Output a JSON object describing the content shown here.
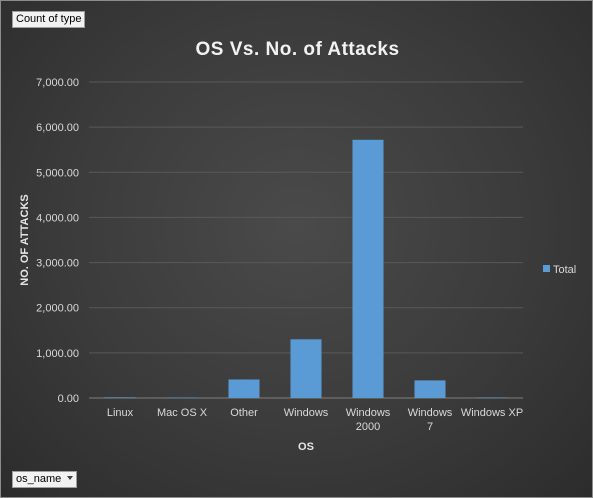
{
  "filter_buttons": {
    "value_field": "Count of type",
    "axis_field": "os_name"
  },
  "chart_data": {
    "type": "bar",
    "title": "OS Vs. No. of Attacks",
    "xlabel": "OS",
    "ylabel": "NO. OF ATTACKS",
    "categories": [
      "Linux",
      "Mac OS X",
      "Other",
      "Windows",
      "Windows 2000",
      "Windows 7",
      "Windows XP"
    ],
    "series": [
      {
        "name": "Total",
        "values": [
          15,
          10,
          410,
          1300,
          5720,
          390,
          12
        ]
      }
    ],
    "ylim": [
      0,
      7000
    ],
    "yticks": [
      0,
      1000,
      2000,
      3000,
      4000,
      5000,
      6000,
      7000
    ],
    "ytick_labels": [
      "0.00",
      "1,000.00",
      "2,000.00",
      "3,000.00",
      "4,000.00",
      "5,000.00",
      "6,000.00",
      "7,000.00"
    ],
    "grid": true,
    "legend_position": "right",
    "colors": {
      "bar": "#5b9bd5",
      "gridline": "#595959",
      "background": "#404040"
    }
  }
}
